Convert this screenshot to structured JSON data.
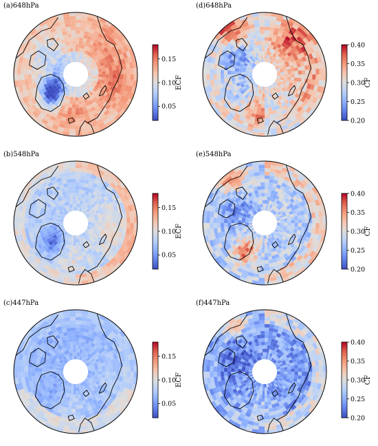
{
  "figure": {
    "panels": [
      {
        "id": "a",
        "label": "(a)648hPa",
        "variable": "ECF",
        "colorbar": {
          "ticks": [
            "0.15",
            "0.10",
            "0.05"
          ],
          "range": [
            0.02,
            0.18
          ],
          "label": "ECF"
        },
        "pattern": "high"
      },
      {
        "id": "d",
        "label": "(d)648hPa",
        "variable": "CF",
        "colorbar": {
          "ticks": [
            "0.40",
            "0.35",
            "0.30",
            "0.25",
            "0.20"
          ],
          "range": [
            0.2,
            0.4
          ],
          "label": "CF"
        },
        "pattern": "cf-high"
      },
      {
        "id": "b",
        "label": "(b)548hPa",
        "variable": "ECF",
        "colorbar": {
          "ticks": [
            "0.15",
            "0.10",
            "0.05"
          ],
          "range": [
            0.02,
            0.18
          ],
          "label": "ECF"
        },
        "pattern": "mid"
      },
      {
        "id": "e",
        "label": "(e)548hPa",
        "variable": "CF",
        "colorbar": {
          "ticks": [
            "0.40",
            "0.35",
            "0.30",
            "0.25",
            "0.20"
          ],
          "range": [
            0.2,
            0.4
          ],
          "label": "CF"
        },
        "pattern": "cf-mid"
      },
      {
        "id": "c",
        "label": "(c)447hPa",
        "variable": "ECF",
        "colorbar": {
          "ticks": [
            "0.15",
            "0.10",
            "0.05"
          ],
          "range": [
            0.02,
            0.18
          ],
          "label": "ECF"
        },
        "pattern": "low"
      },
      {
        "id": "f",
        "label": "(f)447hPa",
        "variable": "CF",
        "colorbar": {
          "ticks": [
            "0.40",
            "0.35",
            "0.30",
            "0.25",
            "0.20"
          ],
          "range": [
            0.2,
            0.4
          ],
          "label": "CF"
        },
        "pattern": "cf-low"
      }
    ],
    "colormap": "coolwarm",
    "projection": "north-polar-stereographic",
    "colors": {
      "cold": "#3b4cc0",
      "neutral": "#dddddd",
      "warm": "#b40426",
      "coast": "#000000"
    }
  }
}
